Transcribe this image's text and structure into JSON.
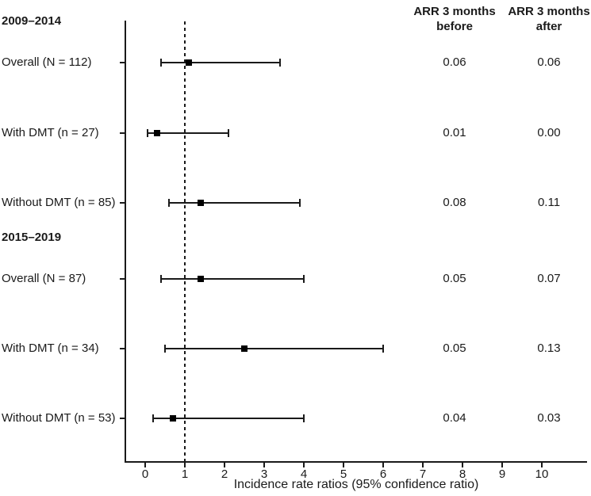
{
  "chart_data": {
    "type": "scatter",
    "subtype": "forest-plot",
    "xlabel": "Incidence rate ratios (95% confidence ratio)",
    "x_ticks": [
      0,
      1,
      2,
      3,
      4,
      5,
      6,
      7,
      8,
      9,
      10
    ],
    "xlim": [
      -0.5,
      11.1
    ],
    "reference_line_x": 1,
    "grid": false,
    "legend": "none",
    "value_columns": [
      "ARR 3 months\nbefore",
      "ARR 3 months\nafter"
    ],
    "groups": [
      {
        "label": "2009–2014",
        "rows": [
          {
            "label": "Overall (N = 112)",
            "estimate": 1.1,
            "ci_low": 0.4,
            "ci_high": 3.4,
            "arr_before": "0.06",
            "arr_after": "0.06"
          },
          {
            "label": "With DMT (n = 27)",
            "estimate": 0.3,
            "ci_low": 0.05,
            "ci_high": 2.1,
            "arr_before": "0.01",
            "arr_after": "0.00"
          },
          {
            "label": "Without DMT (n = 85)",
            "estimate": 1.4,
            "ci_low": 0.6,
            "ci_high": 3.9,
            "arr_before": "0.08",
            "arr_after": "0.11"
          }
        ]
      },
      {
        "label": "2015–2019",
        "rows": [
          {
            "label": "Overall (N = 87)",
            "estimate": 1.4,
            "ci_low": 0.4,
            "ci_high": 4.0,
            "arr_before": "0.05",
            "arr_after": "0.07"
          },
          {
            "label": "With DMT (n = 34)",
            "estimate": 2.5,
            "ci_low": 0.5,
            "ci_high": 6.0,
            "arr_before": "0.05",
            "arr_after": "0.13"
          },
          {
            "label": "Without DMT (n = 53)",
            "estimate": 0.7,
            "ci_low": 0.2,
            "ci_high": 4.0,
            "arr_before": "0.04",
            "arr_after": "0.03"
          }
        ]
      }
    ],
    "colors": {
      "line": "#1a1a1a",
      "marker": "#000000",
      "text": "#1a1a1a",
      "background": "#ffffff"
    }
  }
}
